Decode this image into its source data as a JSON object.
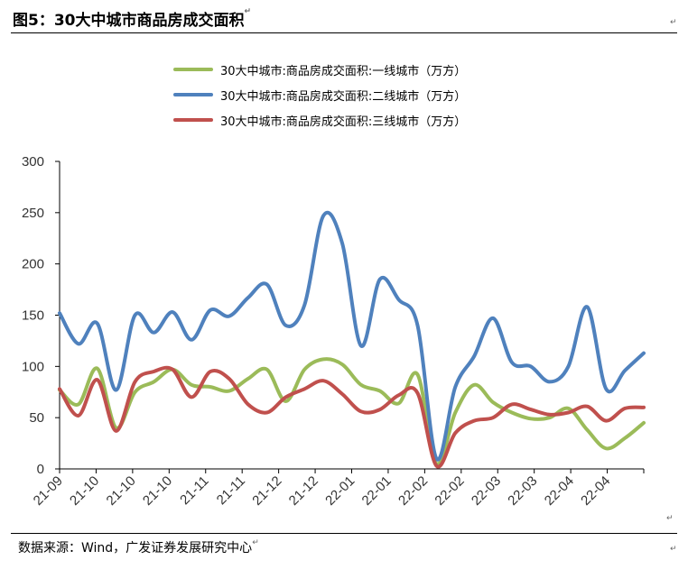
{
  "figure": {
    "title": "图5：30大中城市商品房成交面积",
    "source": "数据来源：Wind，广发证券发展研究中心",
    "return_mark": "↵"
  },
  "chart_data": {
    "type": "line",
    "title": "图5：30大中城市商品房成交面积",
    "xlabel": "",
    "ylabel": "",
    "ylim": [
      0,
      300
    ],
    "yticks": [
      0,
      50,
      100,
      150,
      200,
      250,
      300
    ],
    "grid": false,
    "legend_position": "top",
    "x_tick_labels": [
      "21-09",
      "21-10",
      "21-10",
      "21-10",
      "21-11",
      "21-11",
      "21-12",
      "21-12",
      "22-01",
      "22-01",
      "22-02",
      "22-02",
      "22-03",
      "22-03",
      "22-04",
      "22-04"
    ],
    "x": [
      0,
      1,
      2,
      3,
      4,
      5,
      6,
      7,
      8,
      9,
      10,
      11,
      12,
      13,
      14,
      15,
      16,
      17,
      18,
      19,
      20,
      21,
      22,
      23,
      24,
      25,
      26,
      27,
      28,
      29,
      30,
      31
    ],
    "series": [
      {
        "name": "30大中城市:商品房成交面积:一线城市（万方）",
        "color": "#9bbb59",
        "values": [
          77,
          63,
          98,
          40,
          75,
          85,
          97,
          82,
          80,
          76,
          88,
          97,
          66,
          97,
          107,
          102,
          82,
          76,
          64,
          92,
          5,
          55,
          82,
          65,
          55,
          49,
          50,
          59,
          38,
          20,
          30,
          45
        ]
      },
      {
        "name": "30大中城市:商品房成交面积:二线城市（万方）",
        "color": "#4f81bd",
        "values": [
          152,
          122,
          142,
          77,
          150,
          133,
          153,
          126,
          155,
          149,
          167,
          180,
          140,
          160,
          247,
          220,
          120,
          185,
          165,
          140,
          10,
          80,
          110,
          147,
          104,
          100,
          85,
          100,
          158,
          78,
          96,
          113
        ]
      },
      {
        "name": "30大中城市:商品房成交面积:三线城市（万方）",
        "color": "#c0504d",
        "values": [
          78,
          52,
          87,
          37,
          85,
          95,
          97,
          70,
          95,
          88,
          63,
          55,
          70,
          78,
          86,
          73,
          56,
          58,
          72,
          74,
          3,
          35,
          47,
          50,
          63,
          58,
          53,
          55,
          61,
          47,
          59,
          60
        ]
      }
    ]
  }
}
